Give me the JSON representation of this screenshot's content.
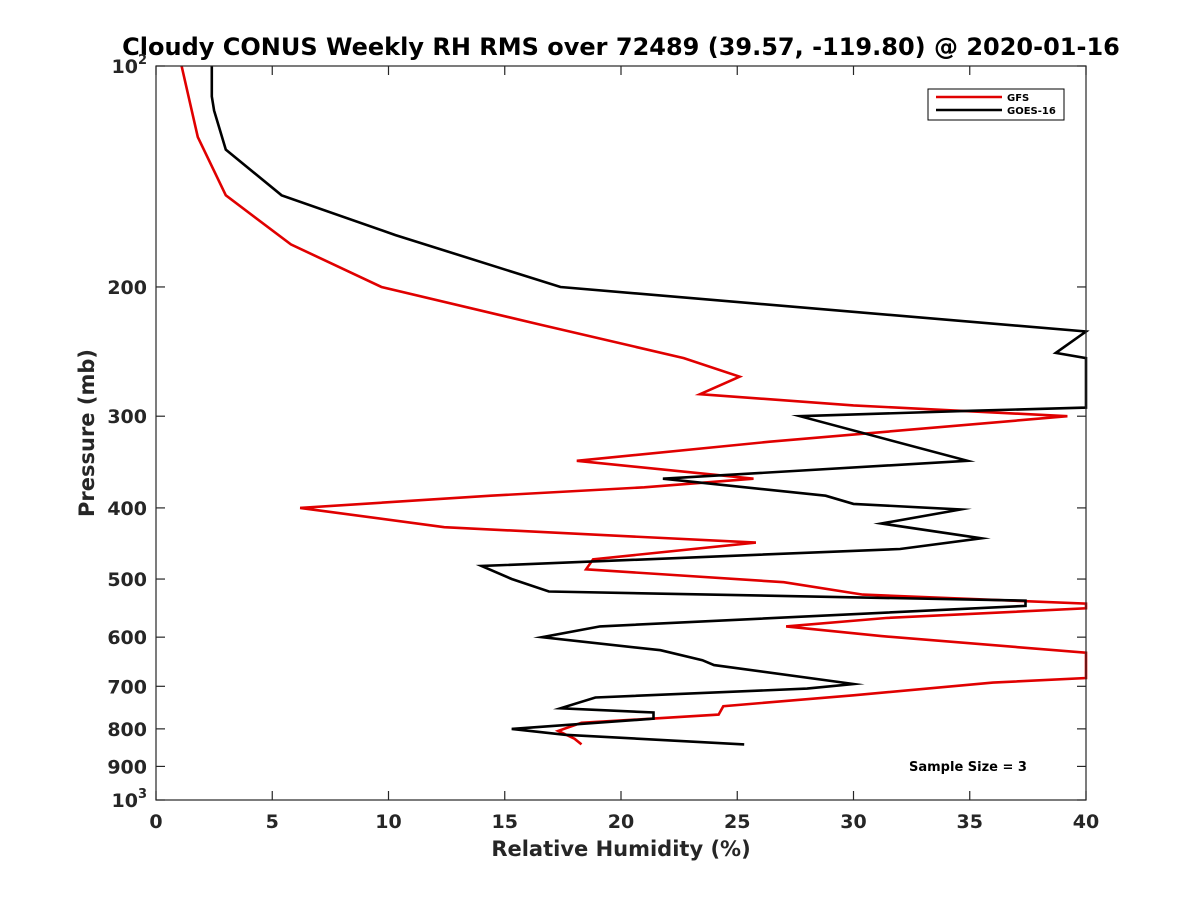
{
  "chart_data": {
    "type": "line",
    "title": "Cloudy CONUS Weekly RH RMS over 72489 (39.57, -119.80) @ 2020-01-16",
    "xlabel": "Relative Humidity (%)",
    "ylabel": "Pressure (mb)",
    "xlim": [
      0,
      40
    ],
    "ylim": [
      100,
      1000
    ],
    "y_scale": "log",
    "y_reversed": true,
    "x_ticks": [
      "0",
      "5",
      "10",
      "15",
      "20",
      "25",
      "30",
      "35",
      "40"
    ],
    "y_ticks": [
      {
        "value": 100,
        "label": "10",
        "sup": "2"
      },
      {
        "value": 200,
        "label": "200",
        "sup": ""
      },
      {
        "value": 300,
        "label": "300",
        "sup": ""
      },
      {
        "value": 400,
        "label": "400",
        "sup": ""
      },
      {
        "value": 500,
        "label": "500",
        "sup": ""
      },
      {
        "value": 600,
        "label": "600",
        "sup": ""
      },
      {
        "value": 700,
        "label": "700",
        "sup": ""
      },
      {
        "value": 800,
        "label": "800",
        "sup": ""
      },
      {
        "value": 900,
        "label": "900",
        "sup": ""
      },
      {
        "value": 1000,
        "label": "10",
        "sup": "3"
      }
    ],
    "grid": false,
    "legend_position": "top-right",
    "series": [
      {
        "name": "GFS",
        "color": "#e00000",
        "points": [
          [
            1.1,
            100
          ],
          [
            1.8,
            125
          ],
          [
            3.0,
            150
          ],
          [
            5.8,
            175
          ],
          [
            9.7,
            200
          ],
          [
            16.5,
            225
          ],
          [
            22.7,
            250
          ],
          [
            25.1,
            265
          ],
          [
            23.4,
            280
          ],
          [
            30.0,
            290
          ],
          [
            39.2,
            300
          ],
          [
            26.4,
            325
          ],
          [
            18.1,
            345
          ],
          [
            25.7,
            365
          ],
          [
            21.0,
            375
          ],
          [
            14.4,
            385
          ],
          [
            6.2,
            400
          ],
          [
            12.4,
            425
          ],
          [
            25.8,
            446
          ],
          [
            18.8,
            470
          ],
          [
            18.5,
            485
          ],
          [
            27.0,
            505
          ],
          [
            30.4,
            525
          ],
          [
            40.0,
            540
          ],
          [
            40.0,
            548
          ],
          [
            31.4,
            565
          ],
          [
            27.1,
            580
          ],
          [
            31.2,
            598
          ],
          [
            40.0,
            630
          ],
          [
            40.0,
            682
          ],
          [
            36.0,
            692
          ],
          [
            30.0,
            720
          ],
          [
            24.4,
            745
          ],
          [
            24.2,
            765
          ],
          [
            21.3,
            775
          ],
          [
            18.3,
            785
          ],
          [
            17.3,
            805
          ],
          [
            18.0,
            825
          ],
          [
            18.3,
            840
          ]
        ]
      },
      {
        "name": "GOES-16",
        "color": "#000000",
        "points": [
          [
            2.4,
            100
          ],
          [
            2.4,
            110
          ],
          [
            2.5,
            115
          ],
          [
            3.0,
            130
          ],
          [
            5.4,
            150
          ],
          [
            10.3,
            170
          ],
          [
            17.4,
            200
          ],
          [
            40.0,
            230
          ],
          [
            38.7,
            246
          ],
          [
            40.0,
            250
          ],
          [
            40.0,
            292
          ],
          [
            35.0,
            295
          ],
          [
            27.7,
            300
          ],
          [
            34.9,
            345
          ],
          [
            21.8,
            365
          ],
          [
            28.8,
            385
          ],
          [
            30.0,
            395
          ],
          [
            34.6,
            402
          ],
          [
            31.2,
            420
          ],
          [
            35.5,
            440
          ],
          [
            32.0,
            455
          ],
          [
            14.0,
            480
          ],
          [
            15.3,
            500
          ],
          [
            16.9,
            520
          ],
          [
            37.4,
            535
          ],
          [
            37.4,
            544
          ],
          [
            19.1,
            580
          ],
          [
            16.6,
            600
          ],
          [
            21.7,
            625
          ],
          [
            23.5,
            645
          ],
          [
            24.0,
            655
          ],
          [
            30.0,
            695
          ],
          [
            28.0,
            705
          ],
          [
            18.9,
            725
          ],
          [
            17.4,
            750
          ],
          [
            21.4,
            760
          ],
          [
            21.4,
            775
          ],
          [
            15.3,
            800
          ],
          [
            17.6,
            815
          ],
          [
            25.3,
            840
          ]
        ]
      }
    ],
    "annotation": "Sample Size = 3"
  }
}
